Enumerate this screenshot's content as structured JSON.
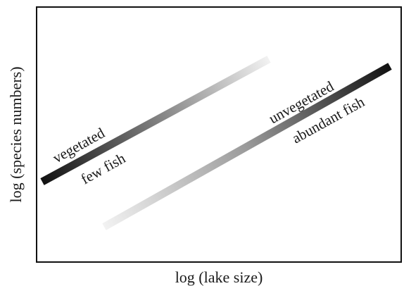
{
  "diagram": {
    "xlabel": "log (lake size)",
    "ylabel": "log (species numbers)",
    "lines": [
      {
        "name": "vegetated-line",
        "label_above": "vegetated",
        "label_below": "few fish",
        "gradient": {
          "from_color": "#111111",
          "to_color": "#f2f2f2"
        }
      },
      {
        "name": "unvegetated-line",
        "label_above": "unvegetated",
        "label_below": "abundant fish",
        "gradient": {
          "from_color": "#f2f2f2",
          "to_color": "#111111"
        }
      }
    ]
  }
}
